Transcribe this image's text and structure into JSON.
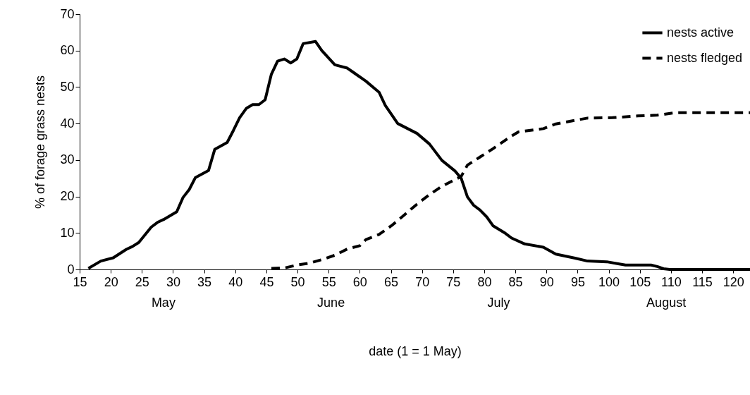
{
  "chart_data": {
    "type": "line",
    "xlabel": "date (1 = 1 May)",
    "ylabel": "% of forage grass nests",
    "xlim": [
      15,
      122.7
    ],
    "xticks": [
      15,
      20,
      25,
      30,
      35,
      40,
      45,
      50,
      55,
      60,
      65,
      70,
      75,
      80,
      85,
      90,
      95,
      100,
      105,
      110,
      115,
      120
    ],
    "ylim": [
      0,
      70
    ],
    "yticks": [
      0,
      10,
      20,
      30,
      40,
      50,
      60,
      70
    ],
    "grid": false,
    "legend": "top right",
    "marker": "none",
    "annotations": [
      "May",
      "June",
      "July",
      "August"
    ],
    "series": [
      {
        "name": "nests active",
        "color": "#000000",
        "line_style": "solid",
        "x": [
          16.4,
          18.4,
          20.4,
          22.5,
          23.5,
          24.5,
          26.5,
          27.5,
          28.5,
          30.6,
          31.6,
          32.6,
          33.6,
          35.7,
          36.7,
          38.7,
          39.7,
          40.7,
          41.8,
          42.8,
          43.8,
          44.8,
          45.8,
          46.8,
          47.9,
          48.9,
          49.9,
          50.9,
          52.9,
          53.9,
          56,
          58,
          59,
          61,
          63.1,
          64.1,
          66.1,
          69.2,
          71.2,
          73.2,
          75.3,
          76.3,
          77.3,
          78.3,
          79.3,
          80.4,
          81.4,
          83.4,
          84.4,
          86.5,
          89.5,
          91.5,
          94.6,
          96.6,
          99.7,
          101.7,
          102.7,
          106.8,
          107.8,
          108.8,
          109.8,
          110.8,
          122.7
        ],
        "values": [
          0.3,
          2.3,
          3.2,
          5.5,
          6.3,
          7.4,
          11.6,
          12.9,
          13.7,
          15.8,
          19.7,
          21.9,
          25.2,
          27.1,
          32.9,
          34.8,
          38.1,
          41.6,
          44.2,
          45.2,
          45.2,
          46.5,
          53.5,
          57.1,
          57.7,
          56.6,
          57.7,
          61.9,
          62.5,
          60,
          56.1,
          55.2,
          54,
          51.6,
          48.6,
          45,
          40,
          37.3,
          34.4,
          29.9,
          27,
          25,
          19.9,
          17.6,
          16.3,
          14.4,
          12,
          9.9,
          8.6,
          7,
          6.1,
          4.2,
          3.1,
          2.3,
          2.1,
          1.5,
          1.2,
          1.2,
          0.8,
          0.2,
          0,
          0,
          0
        ]
      },
      {
        "name": "nests fledged",
        "color": "#000000",
        "line_style": "dashed",
        "x": [
          45.8,
          47.9,
          49.9,
          51.9,
          53.9,
          56,
          58,
          60,
          61,
          63.1,
          65.1,
          66.1,
          69.2,
          71.2,
          73.2,
          76.3,
          77.3,
          79.3,
          81.4,
          84.4,
          85.5,
          89.5,
          91.5,
          96.6,
          100.6,
          104.7,
          107.8,
          110.8,
          122.7
        ],
        "values": [
          0.3,
          0.4,
          1.2,
          1.7,
          2.7,
          3.9,
          5.6,
          6.5,
          8.2,
          9.6,
          12,
          13.4,
          17.9,
          20.5,
          22.8,
          25.5,
          28.6,
          30.8,
          33.1,
          36.6,
          37.7,
          38.6,
          39.9,
          41.5,
          41.6,
          42.1,
          42.3,
          43,
          43
        ]
      }
    ]
  }
}
